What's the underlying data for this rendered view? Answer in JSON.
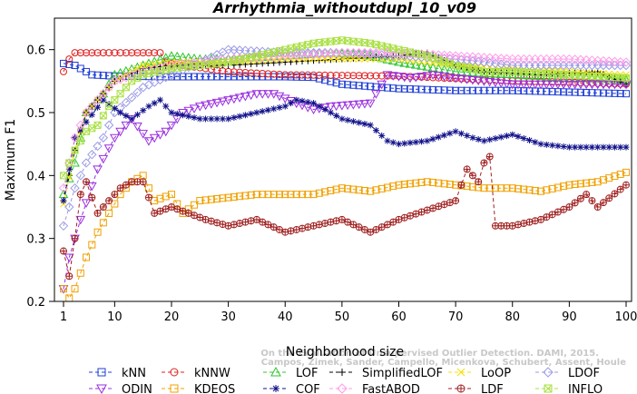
{
  "chart_data": {
    "type": "line",
    "title": "Arrhythmia_withoutdupl_10_v09",
    "xlabel": "Neighborhood size",
    "ylabel": "Maximum F1",
    "xlim": [
      0,
      100
    ],
    "ylim": [
      0.2,
      0.65
    ],
    "x_ticks": [
      1,
      10,
      20,
      30,
      40,
      50,
      60,
      70,
      80,
      90,
      100
    ],
    "y_ticks": [
      0.2,
      0.3,
      0.4,
      0.5,
      0.6
    ],
    "watermark": [
      "Campos, Zimek, Sander, Campello, Micenkova, Schubert, Assent, Houle",
      "On the Evaluation of Unsupervised Outlier Detection. DAMI, 2015."
    ],
    "series": [
      {
        "name": "kNN",
        "color": "#1f3fd6",
        "marker": "square",
        "linetype": "dashed",
        "knots": [
          [
            1,
            0.578
          ],
          [
            3,
            0.575
          ],
          [
            6,
            0.56
          ],
          [
            10,
            0.558
          ],
          [
            20,
            0.557
          ],
          [
            40,
            0.557
          ],
          [
            45,
            0.556
          ],
          [
            50,
            0.545
          ],
          [
            60,
            0.538
          ],
          [
            70,
            0.535
          ],
          [
            80,
            0.535
          ],
          [
            100,
            0.53
          ]
        ]
      },
      {
        "name": "kNNW",
        "color": "#e02020",
        "marker": "circle",
        "linetype": "dashed",
        "knots": [
          [
            1,
            0.565
          ],
          [
            2,
            0.585
          ],
          [
            3,
            0.595
          ],
          [
            10,
            0.595
          ],
          [
            18,
            0.595
          ],
          [
            19,
            0.58
          ],
          [
            22,
            0.575
          ],
          [
            30,
            0.565
          ],
          [
            40,
            0.56
          ],
          [
            60,
            0.558
          ],
          [
            75,
            0.552
          ],
          [
            90,
            0.548
          ],
          [
            100,
            0.545
          ]
        ]
      },
      {
        "name": "LOF",
        "color": "#2fc42f",
        "marker": "triangle",
        "linetype": "dashed",
        "knots": [
          [
            1,
            0.37
          ],
          [
            3,
            0.42
          ],
          [
            5,
            0.5
          ],
          [
            8,
            0.53
          ],
          [
            10,
            0.56
          ],
          [
            15,
            0.575
          ],
          [
            20,
            0.59
          ],
          [
            25,
            0.585
          ],
          [
            30,
            0.585
          ],
          [
            40,
            0.59
          ],
          [
            48,
            0.595
          ],
          [
            55,
            0.59
          ],
          [
            60,
            0.58
          ],
          [
            70,
            0.565
          ],
          [
            80,
            0.56
          ],
          [
            90,
            0.555
          ],
          [
            100,
            0.552
          ]
        ]
      },
      {
        "name": "SimplifiedLOF",
        "color": "#000000",
        "marker": "plus",
        "linetype": "dashed",
        "knots": [
          [
            1,
            0.36
          ],
          [
            3,
            0.44
          ],
          [
            5,
            0.5
          ],
          [
            8,
            0.53
          ],
          [
            10,
            0.55
          ],
          [
            15,
            0.57
          ],
          [
            20,
            0.575
          ],
          [
            30,
            0.575
          ],
          [
            40,
            0.58
          ],
          [
            50,
            0.585
          ],
          [
            60,
            0.59
          ],
          [
            65,
            0.595
          ],
          [
            70,
            0.575
          ],
          [
            75,
            0.565
          ],
          [
            85,
            0.56
          ],
          [
            95,
            0.565
          ],
          [
            100,
            0.545
          ]
        ]
      },
      {
        "name": "LoOP",
        "color": "#f5e000",
        "marker": "cross",
        "linetype": "dashed",
        "knots": [
          [
            1,
            0.355
          ],
          [
            3,
            0.44
          ],
          [
            5,
            0.5
          ],
          [
            8,
            0.53
          ],
          [
            10,
            0.55
          ],
          [
            15,
            0.575
          ],
          [
            20,
            0.58
          ],
          [
            30,
            0.58
          ],
          [
            40,
            0.585
          ],
          [
            50,
            0.585
          ],
          [
            60,
            0.585
          ],
          [
            70,
            0.575
          ],
          [
            80,
            0.57
          ],
          [
            90,
            0.565
          ],
          [
            100,
            0.56
          ]
        ]
      },
      {
        "name": "LDOF",
        "color": "#9b9be6",
        "marker": "diamond",
        "linetype": "dashed",
        "knots": [
          [
            1,
            0.32
          ],
          [
            3,
            0.38
          ],
          [
            5,
            0.42
          ],
          [
            8,
            0.46
          ],
          [
            10,
            0.5
          ],
          [
            15,
            0.54
          ],
          [
            20,
            0.56
          ],
          [
            25,
            0.58
          ],
          [
            30,
            0.6
          ],
          [
            40,
            0.595
          ],
          [
            50,
            0.595
          ],
          [
            60,
            0.59
          ],
          [
            70,
            0.585
          ],
          [
            80,
            0.575
          ],
          [
            90,
            0.575
          ],
          [
            100,
            0.575
          ]
        ]
      },
      {
        "name": "ODIN",
        "color": "#9a2fe0",
        "marker": "invtriangle",
        "linetype": "dashed",
        "knots": [
          [
            1,
            0.22
          ],
          [
            2,
            0.27
          ],
          [
            4,
            0.33
          ],
          [
            7,
            0.41
          ],
          [
            10,
            0.46
          ],
          [
            13,
            0.49
          ],
          [
            16,
            0.455
          ],
          [
            19,
            0.47
          ],
          [
            22,
            0.5
          ],
          [
            25,
            0.51
          ],
          [
            30,
            0.52
          ],
          [
            35,
            0.53
          ],
          [
            38,
            0.53
          ],
          [
            42,
            0.515
          ],
          [
            45,
            0.505
          ],
          [
            48,
            0.51
          ],
          [
            55,
            0.515
          ],
          [
            58,
            0.56
          ],
          [
            62,
            0.555
          ],
          [
            66,
            0.56
          ],
          [
            70,
            0.555
          ],
          [
            75,
            0.55
          ],
          [
            80,
            0.545
          ],
          [
            90,
            0.545
          ],
          [
            100,
            0.545
          ]
        ]
      },
      {
        "name": "KDEOS",
        "color": "#f0a000",
        "marker": "square",
        "linetype": "dashed",
        "knots": [
          [
            1,
            0.22
          ],
          [
            2,
            0.205
          ],
          [
            3,
            0.22
          ],
          [
            5,
            0.27
          ],
          [
            7,
            0.31
          ],
          [
            9,
            0.34
          ],
          [
            11,
            0.37
          ],
          [
            13,
            0.39
          ],
          [
            15,
            0.4
          ],
          [
            17,
            0.36
          ],
          [
            20,
            0.37
          ],
          [
            22,
            0.34
          ],
          [
            25,
            0.36
          ],
          [
            30,
            0.365
          ],
          [
            35,
            0.37
          ],
          [
            40,
            0.37
          ],
          [
            45,
            0.37
          ],
          [
            50,
            0.38
          ],
          [
            55,
            0.375
          ],
          [
            60,
            0.385
          ],
          [
            65,
            0.39
          ],
          [
            70,
            0.385
          ],
          [
            75,
            0.38
          ],
          [
            80,
            0.38
          ],
          [
            85,
            0.375
          ],
          [
            90,
            0.385
          ],
          [
            95,
            0.39
          ],
          [
            100,
            0.405
          ]
        ]
      },
      {
        "name": "COF",
        "color": "#10108a",
        "marker": "asterisk",
        "linetype": "dashed",
        "knots": [
          [
            1,
            0.36
          ],
          [
            3,
            0.46
          ],
          [
            5,
            0.485
          ],
          [
            8,
            0.52
          ],
          [
            11,
            0.5
          ],
          [
            13,
            0.49
          ],
          [
            16,
            0.51
          ],
          [
            18,
            0.52
          ],
          [
            20,
            0.5
          ],
          [
            25,
            0.49
          ],
          [
            30,
            0.49
          ],
          [
            35,
            0.5
          ],
          [
            40,
            0.51
          ],
          [
            42,
            0.52
          ],
          [
            45,
            0.515
          ],
          [
            48,
            0.5
          ],
          [
            50,
            0.49
          ],
          [
            55,
            0.48
          ],
          [
            58,
            0.455
          ],
          [
            60,
            0.45
          ],
          [
            65,
            0.455
          ],
          [
            70,
            0.47
          ],
          [
            73,
            0.46
          ],
          [
            75,
            0.455
          ],
          [
            80,
            0.465
          ],
          [
            85,
            0.45
          ],
          [
            90,
            0.445
          ],
          [
            100,
            0.445
          ]
        ]
      },
      {
        "name": "FastABOD",
        "color": "#ff9be8",
        "marker": "diamond",
        "linetype": "dashed",
        "knots": [
          [
            1,
            0.38
          ],
          [
            3,
            0.46
          ],
          [
            5,
            0.5
          ],
          [
            8,
            0.53
          ],
          [
            10,
            0.55
          ],
          [
            15,
            0.565
          ],
          [
            20,
            0.575
          ],
          [
            30,
            0.585
          ],
          [
            40,
            0.59
          ],
          [
            50,
            0.595
          ],
          [
            60,
            0.595
          ],
          [
            70,
            0.59
          ],
          [
            80,
            0.585
          ],
          [
            90,
            0.585
          ],
          [
            100,
            0.58
          ]
        ]
      },
      {
        "name": "LDF",
        "color": "#a02020",
        "marker": "circleplus",
        "linetype": "dashed",
        "knots": [
          [
            1,
            0.28
          ],
          [
            2,
            0.24
          ],
          [
            3,
            0.3
          ],
          [
            4,
            0.37
          ],
          [
            5,
            0.39
          ],
          [
            7,
            0.34
          ],
          [
            9,
            0.36
          ],
          [
            11,
            0.38
          ],
          [
            13,
            0.39
          ],
          [
            15,
            0.39
          ],
          [
            17,
            0.34
          ],
          [
            20,
            0.35
          ],
          [
            23,
            0.34
          ],
          [
            26,
            0.33
          ],
          [
            30,
            0.32
          ],
          [
            35,
            0.33
          ],
          [
            40,
            0.31
          ],
          [
            45,
            0.32
          ],
          [
            50,
            0.33
          ],
          [
            55,
            0.31
          ],
          [
            60,
            0.33
          ],
          [
            65,
            0.345
          ],
          [
            70,
            0.36
          ],
          [
            72,
            0.41
          ],
          [
            74,
            0.39
          ],
          [
            75,
            0.42
          ],
          [
            76,
            0.43
          ],
          [
            77,
            0.32
          ],
          [
            80,
            0.32
          ],
          [
            85,
            0.33
          ],
          [
            90,
            0.35
          ],
          [
            93,
            0.37
          ],
          [
            95,
            0.35
          ],
          [
            100,
            0.385
          ]
        ]
      },
      {
        "name": "INFLO",
        "color": "#a8e040",
        "marker": "squarecross",
        "linetype": "dashed",
        "knots": [
          [
            1,
            0.4
          ],
          [
            3,
            0.44
          ],
          [
            5,
            0.47
          ],
          [
            7,
            0.48
          ],
          [
            9,
            0.51
          ],
          [
            11,
            0.53
          ],
          [
            13,
            0.55
          ],
          [
            15,
            0.56
          ],
          [
            20,
            0.57
          ],
          [
            25,
            0.575
          ],
          [
            30,
            0.58
          ],
          [
            40,
            0.6
          ],
          [
            45,
            0.61
          ],
          [
            50,
            0.615
          ],
          [
            55,
            0.61
          ],
          [
            60,
            0.6
          ],
          [
            65,
            0.59
          ],
          [
            70,
            0.575
          ],
          [
            75,
            0.565
          ],
          [
            80,
            0.565
          ],
          [
            90,
            0.56
          ],
          [
            100,
            0.555
          ]
        ]
      }
    ]
  }
}
